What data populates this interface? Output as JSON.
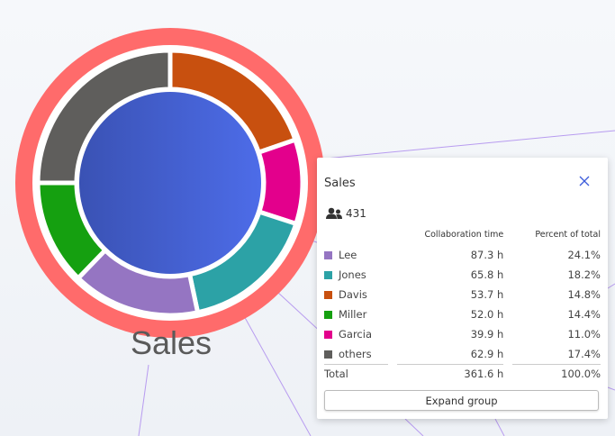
{
  "group": {
    "label": "Sales",
    "ring_color": "#ff6b6b",
    "center_gradient": [
      "#3a52b4",
      "#4d6ce8"
    ]
  },
  "panel": {
    "title": "Sales",
    "member_icon": "people-icon",
    "member_count": "431",
    "columns": [
      "Collaboration time",
      "Percent of total"
    ],
    "rows": [
      {
        "name": "Lee",
        "time": "87.3 h",
        "percent": "24.1%",
        "color": "#9575c2"
      },
      {
        "name": "Jones",
        "time": "65.8 h",
        "percent": "18.2%",
        "color": "#2ca2a6"
      },
      {
        "name": "Davis",
        "time": "53.7 h",
        "percent": "14.8%",
        "color": "#c8500f"
      },
      {
        "name": "Miller",
        "time": "52.0 h",
        "percent": "14.4%",
        "color": "#15a010"
      },
      {
        "name": "Garcia",
        "time": "39.9 h",
        "percent": "11.0%",
        "color": "#e3008c"
      },
      {
        "name": "others",
        "time": "62.9 h",
        "percent": "17.4%",
        "color": "#5f5e5c"
      }
    ],
    "total": {
      "label": "Total",
      "time": "361.6 h",
      "percent": "100.0%"
    },
    "expand_label": "Expand group",
    "close_icon": "close-icon"
  }
}
